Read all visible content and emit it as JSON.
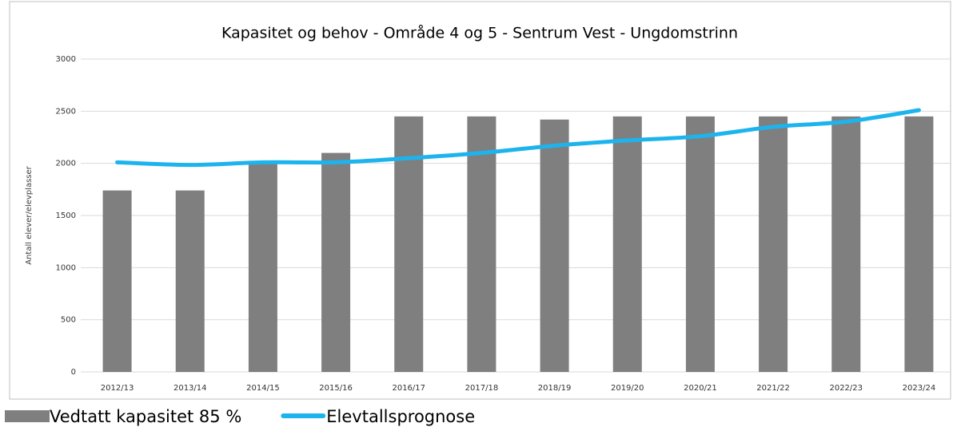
{
  "chart_data": {
    "type": "bar_line",
    "title": "Kapasitet og behov - Område 4 og 5 - Sentrum Vest - Ungdomstrinn",
    "y_label": "Antall elever/elevplasser",
    "categories": [
      "2012/13",
      "2013/14",
      "2014/15",
      "2015/16",
      "2016/17",
      "2017/18",
      "2018/19",
      "2019/20",
      "2020/21",
      "2021/22",
      "2022/23",
      "2023/24"
    ],
    "series": [
      {
        "name": "Vedtatt kapasitet 85 %",
        "type": "bar",
        "color": "#7f7f7f",
        "values": [
          1740,
          1740,
          2000,
          2100,
          2450,
          2450,
          2420,
          2450,
          2450,
          2450,
          2450,
          2450
        ]
      },
      {
        "name": "Elevtallsprognose",
        "type": "line",
        "color": "#1db4ee",
        "values": [
          2010,
          1985,
          2010,
          2010,
          2050,
          2100,
          2170,
          2220,
          2260,
          2350,
          2400,
          2510
        ]
      }
    ],
    "ylim": [
      0,
      3000
    ],
    "yticks": [
      0,
      500,
      1000,
      1500,
      2000,
      2500,
      3000
    ],
    "grid": true,
    "legend": "bottom-left"
  }
}
